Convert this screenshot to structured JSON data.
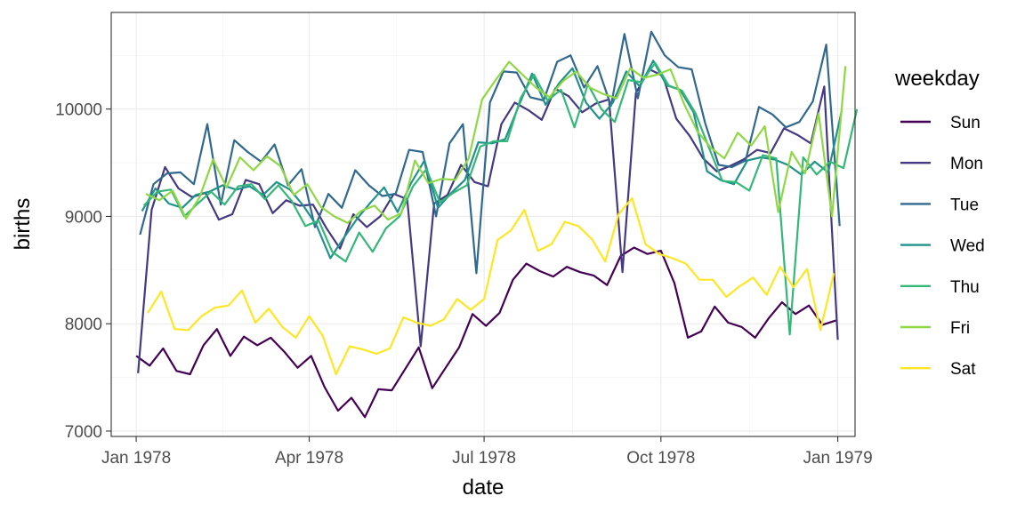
{
  "chart_data": {
    "type": "line",
    "xlabel": "date",
    "ylabel": "births",
    "xlim": [
      "1977-12-19",
      "1979-01-10"
    ],
    "ylim": [
      6950,
      10900
    ],
    "y_ticks": [
      7000,
      8000,
      9000,
      10000
    ],
    "x_ticks": [
      {
        "date": "1978-01-01",
        "label": "Jan 1978"
      },
      {
        "date": "1978-04-01",
        "label": "Apr 1978"
      },
      {
        "date": "1978-07-01",
        "label": "Jul 1978"
      },
      {
        "date": "1978-10-01",
        "label": "Oct 1978"
      },
      {
        "date": "1979-01-01",
        "label": "Jan 1979"
      }
    ],
    "grid": true,
    "legend": {
      "title": "weekday",
      "position": "right"
    },
    "series": [
      {
        "name": "Sun",
        "color": "#440154",
        "start": "1978-01-01",
        "values": [
          7700,
          7610,
          7770,
          7560,
          7530,
          7800,
          7950,
          7700,
          7880,
          7800,
          7870,
          7740,
          7590,
          7700,
          7410,
          7190,
          7310,
          7130,
          7390,
          7380,
          7580,
          7780,
          7400,
          7590,
          7780,
          8090,
          7980,
          8100,
          8410,
          8560,
          8490,
          8440,
          8530,
          8480,
          8450,
          8360,
          8630,
          8710,
          8650,
          8680,
          8380,
          7870,
          7930,
          8160,
          8010,
          7970,
          7870,
          8050,
          8200,
          8090,
          8170,
          7990,
          8030
        ]
      },
      {
        "name": "Mon",
        "color": "#443983",
        "start": "1978-01-02",
        "values": [
          7540,
          9060,
          9460,
          9260,
          9180,
          9220,
          8970,
          9020,
          9340,
          9300,
          9030,
          9150,
          9100,
          9110,
          8890,
          8700,
          9020,
          8900,
          9000,
          9210,
          9160,
          7790,
          9120,
          9200,
          9480,
          9320,
          9280,
          9860,
          10060,
          9990,
          9900,
          10190,
          10120,
          9970,
          10050,
          10090,
          8480,
          10150,
          10370,
          10310,
          9910,
          9750,
          9540,
          9420,
          9470,
          9530,
          9620,
          9590,
          9820,
          9760,
          9680,
          10210,
          7850
        ]
      },
      {
        "name": "Tue",
        "color": "#31688e",
        "start": "1978-01-03",
        "values": [
          8830,
          9300,
          9400,
          9410,
          9300,
          9860,
          9110,
          9710,
          9600,
          9510,
          9670,
          9290,
          9440,
          8900,
          9210,
          9080,
          9430,
          9290,
          9190,
          9210,
          9620,
          9600,
          9000,
          9680,
          9860,
          8470,
          10060,
          10350,
          10340,
          10110,
          10080,
          10440,
          10500,
          10200,
          10400,
          10030,
          10700,
          10100,
          10720,
          10500,
          10390,
          10370,
          9870,
          9480,
          9460,
          9520,
          10020,
          9950,
          9830,
          9880,
          10070,
          10600,
          8910
        ]
      },
      {
        "name": "Wed",
        "color": "#21918c",
        "start": "1978-01-04",
        "values": [
          9050,
          9260,
          9120,
          9080,
          9200,
          9230,
          9290,
          9250,
          9280,
          9200,
          9320,
          9250,
          9100,
          8910,
          8610,
          8800,
          8980,
          9130,
          9270,
          9040,
          9310,
          9520,
          9080,
          9220,
          9340,
          9690,
          9680,
          9720,
          10030,
          10330,
          10040,
          10240,
          10380,
          10060,
          9910,
          10060,
          10350,
          10210,
          10450,
          10220,
          10180,
          9970,
          9420,
          9340,
          9300,
          9520,
          9550,
          9530,
          9480,
          9390,
          9510,
          9410,
          9980
        ]
      },
      {
        "name": "Thu",
        "color": "#35b779",
        "start": "1978-01-05",
        "values": [
          9100,
          9230,
          9250,
          9000,
          9120,
          9230,
          9110,
          9280,
          9300,
          9160,
          9290,
          9140,
          8910,
          8960,
          8670,
          8580,
          8850,
          8670,
          8890,
          9000,
          9280,
          9440,
          9130,
          9220,
          9290,
          9650,
          9700,
          9700,
          10100,
          10320,
          10080,
          10180,
          9830,
          10230,
          10000,
          9880,
          10270,
          10250,
          10430,
          10220,
          10170,
          9960,
          9640,
          9330,
          9320,
          9240,
          9570,
          9540,
          7900,
          9550,
          9390,
          9510,
          9450,
          10000
        ]
      },
      {
        "name": "Fri",
        "color": "#8fd744",
        "start": "1978-01-06",
        "values": [
          9210,
          9150,
          9240,
          8980,
          9180,
          9530,
          9270,
          9550,
          9430,
          9560,
          9470,
          9200,
          9300,
          9090,
          9000,
          8940,
          9050,
          9100,
          8970,
          9030,
          9520,
          9310,
          9350,
          9340,
          9540,
          10090,
          10270,
          10440,
          10320,
          10200,
          10110,
          10260,
          10350,
          10200,
          10140,
          10100,
          10380,
          10290,
          10320,
          10370,
          10050,
          9790,
          9640,
          9540,
          9780,
          9660,
          9840,
          9040,
          9600,
          9400,
          9960,
          9000,
          10400
        ]
      },
      {
        "name": "Sat",
        "color": "#fde725",
        "start": "1978-01-07",
        "values": [
          8100,
          8300,
          7950,
          7940,
          8070,
          8150,
          8170,
          8310,
          8010,
          8140,
          7970,
          7870,
          8070,
          7890,
          7530,
          7790,
          7760,
          7720,
          7770,
          8060,
          8010,
          7980,
          8040,
          8230,
          8130,
          8230,
          8780,
          8870,
          9060,
          8680,
          8740,
          8950,
          8910,
          8790,
          8580,
          9020,
          9170,
          8740,
          8650,
          8610,
          8560,
          8410,
          8410,
          8250,
          8350,
          8430,
          8270,
          8530,
          8340,
          8510,
          7940,
          8470
        ]
      }
    ]
  }
}
